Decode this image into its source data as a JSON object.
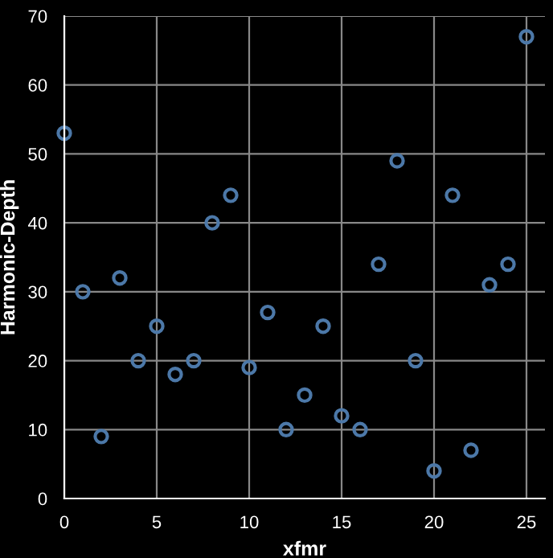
{
  "chart_data": {
    "type": "scatter",
    "xlabel": "xfmr",
    "ylabel": "Harmonic-Depth",
    "x": [
      0,
      1,
      2,
      3,
      4,
      5,
      6,
      7,
      8,
      9,
      10,
      11,
      12,
      13,
      14,
      15,
      16,
      17,
      18,
      19,
      20,
      21,
      22,
      23,
      24,
      25
    ],
    "series": [
      {
        "color": "#4c78a8",
        "values": [
          53,
          30,
          9,
          32,
          20,
          25,
          18,
          20,
          40,
          44,
          19,
          27,
          10,
          15,
          25,
          12,
          10,
          34,
          49,
          20,
          4,
          44,
          7,
          31,
          34,
          67
        ]
      }
    ],
    "xlim": [
      0,
      26
    ],
    "ylim": [
      0,
      70
    ],
    "xticks": [
      0,
      5,
      10,
      15,
      20,
      25
    ],
    "yticks": [
      0,
      10,
      20,
      30,
      40,
      50,
      60,
      70
    ],
    "grid": true,
    "marker": "circle",
    "legend": false
  }
}
